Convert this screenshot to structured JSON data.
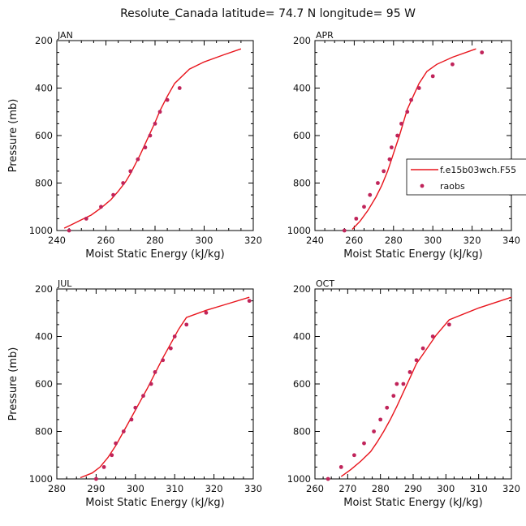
{
  "figure_title": "Resolute_Canada   latitude= 74.7 N longitude= 95 W",
  "legend": {
    "model_label": "f.e15b03wch.F55",
    "obs_label": "raobs",
    "placement": "right-center of APR panel"
  },
  "colors": {
    "model_line": "#e8141c",
    "obs_marker": "#c0245a",
    "axis": "#000000"
  },
  "chart_data": [
    {
      "type": "line",
      "title": "JAN",
      "xlabel": "Moist Static Energy (kJ/kg)",
      "ylabel": "Pressure (mb)",
      "xlim": [
        240,
        320
      ],
      "ylim": [
        1000,
        200
      ],
      "xticks": [
        240,
        260,
        280,
        300,
        320
      ],
      "yticks": [
        200,
        400,
        600,
        800,
        1000
      ],
      "series": [
        {
          "kind": "line",
          "x": [
            243,
            246,
            250,
            254,
            258,
            262,
            265,
            268,
            270,
            272,
            274,
            276,
            278,
            280,
            282,
            285,
            288,
            294,
            300,
            308,
            315
          ],
          "y": [
            990,
            975,
            955,
            935,
            905,
            870,
            835,
            795,
            760,
            720,
            680,
            635,
            590,
            545,
            495,
            435,
            380,
            320,
            290,
            260,
            235
          ]
        },
        {
          "kind": "scatter",
          "x": [
            245,
            252,
            258,
            263,
            267,
            270,
            273,
            276,
            278,
            280,
            282,
            285,
            290
          ],
          "y": [
            1000,
            950,
            900,
            850,
            800,
            750,
            700,
            650,
            600,
            550,
            500,
            450,
            400
          ]
        }
      ]
    },
    {
      "type": "line",
      "title": "APR",
      "xlabel": "Moist Static Energy (kJ/kg)",
      "ylabel": "",
      "xlim": [
        240,
        340
      ],
      "ylim": [
        1000,
        200
      ],
      "xticks": [
        240,
        260,
        280,
        300,
        320,
        340
      ],
      "yticks": [
        200,
        400,
        600,
        800,
        1000
      ],
      "series": [
        {
          "kind": "line",
          "x": [
            259,
            263,
            267,
            271,
            274,
            277,
            279,
            281,
            283,
            285,
            287,
            290,
            293,
            297,
            302,
            310,
            322
          ],
          "y": [
            995,
            960,
            915,
            860,
            810,
            750,
            700,
            650,
            600,
            545,
            490,
            435,
            380,
            330,
            300,
            270,
            235
          ]
        },
        {
          "kind": "scatter",
          "x": [
            255,
            261,
            265,
            268,
            272,
            275,
            278,
            279,
            282,
            284,
            287,
            289,
            293,
            300,
            310,
            325
          ],
          "y": [
            1000,
            950,
            900,
            850,
            800,
            750,
            700,
            650,
            600,
            550,
            500,
            450,
            400,
            350,
            300,
            250
          ]
        }
      ]
    },
    {
      "type": "line",
      "title": "JUL",
      "xlabel": "Moist Static Energy (kJ/kg)",
      "ylabel": "Pressure (mb)",
      "xlim": [
        280,
        330
      ],
      "ylim": [
        1000,
        200
      ],
      "xticks": [
        280,
        290,
        300,
        310,
        320,
        330
      ],
      "yticks": [
        200,
        400,
        600,
        800,
        1000
      ],
      "series": [
        {
          "kind": "line",
          "x": [
            286,
            289,
            291,
            293,
            295,
            297,
            299,
            301,
            303,
            305,
            307,
            309,
            311,
            313,
            318,
            323,
            329
          ],
          "y": [
            995,
            975,
            950,
            910,
            860,
            800,
            740,
            680,
            620,
            555,
            490,
            430,
            370,
            320,
            290,
            265,
            235
          ]
        },
        {
          "kind": "scatter",
          "x": [
            290,
            292,
            294,
            295,
            297,
            299,
            300,
            302,
            304,
            305,
            307,
            309,
            310,
            313,
            318,
            329
          ],
          "y": [
            1000,
            950,
            900,
            850,
            800,
            750,
            700,
            650,
            600,
            550,
            500,
            450,
            400,
            350,
            300,
            250
          ]
        }
      ]
    },
    {
      "type": "line",
      "title": "OCT",
      "xlabel": "Moist Static Energy (kJ/kg)",
      "ylabel": "",
      "xlim": [
        260,
        320
      ],
      "ylim": [
        1000,
        200
      ],
      "xticks": [
        260,
        270,
        280,
        290,
        300,
        310,
        320
      ],
      "yticks": [
        200,
        400,
        600,
        800,
        1000
      ],
      "series": [
        {
          "kind": "line",
          "x": [
            268,
            271,
            274,
            277,
            279,
            281,
            283,
            285,
            287,
            289,
            291,
            294,
            297,
            301,
            310,
            320
          ],
          "y": [
            990,
            960,
            925,
            885,
            845,
            800,
            750,
            695,
            635,
            575,
            515,
            455,
            395,
            330,
            280,
            235
          ]
        },
        {
          "kind": "scatter",
          "x": [
            264,
            268,
            272,
            275,
            278,
            280,
            282,
            284,
            285,
            287,
            289,
            291,
            293,
            296,
            301
          ],
          "y": [
            1000,
            950,
            900,
            850,
            800,
            750,
            700,
            650,
            600,
            600,
            550,
            500,
            450,
            400,
            350
          ]
        }
      ]
    }
  ]
}
